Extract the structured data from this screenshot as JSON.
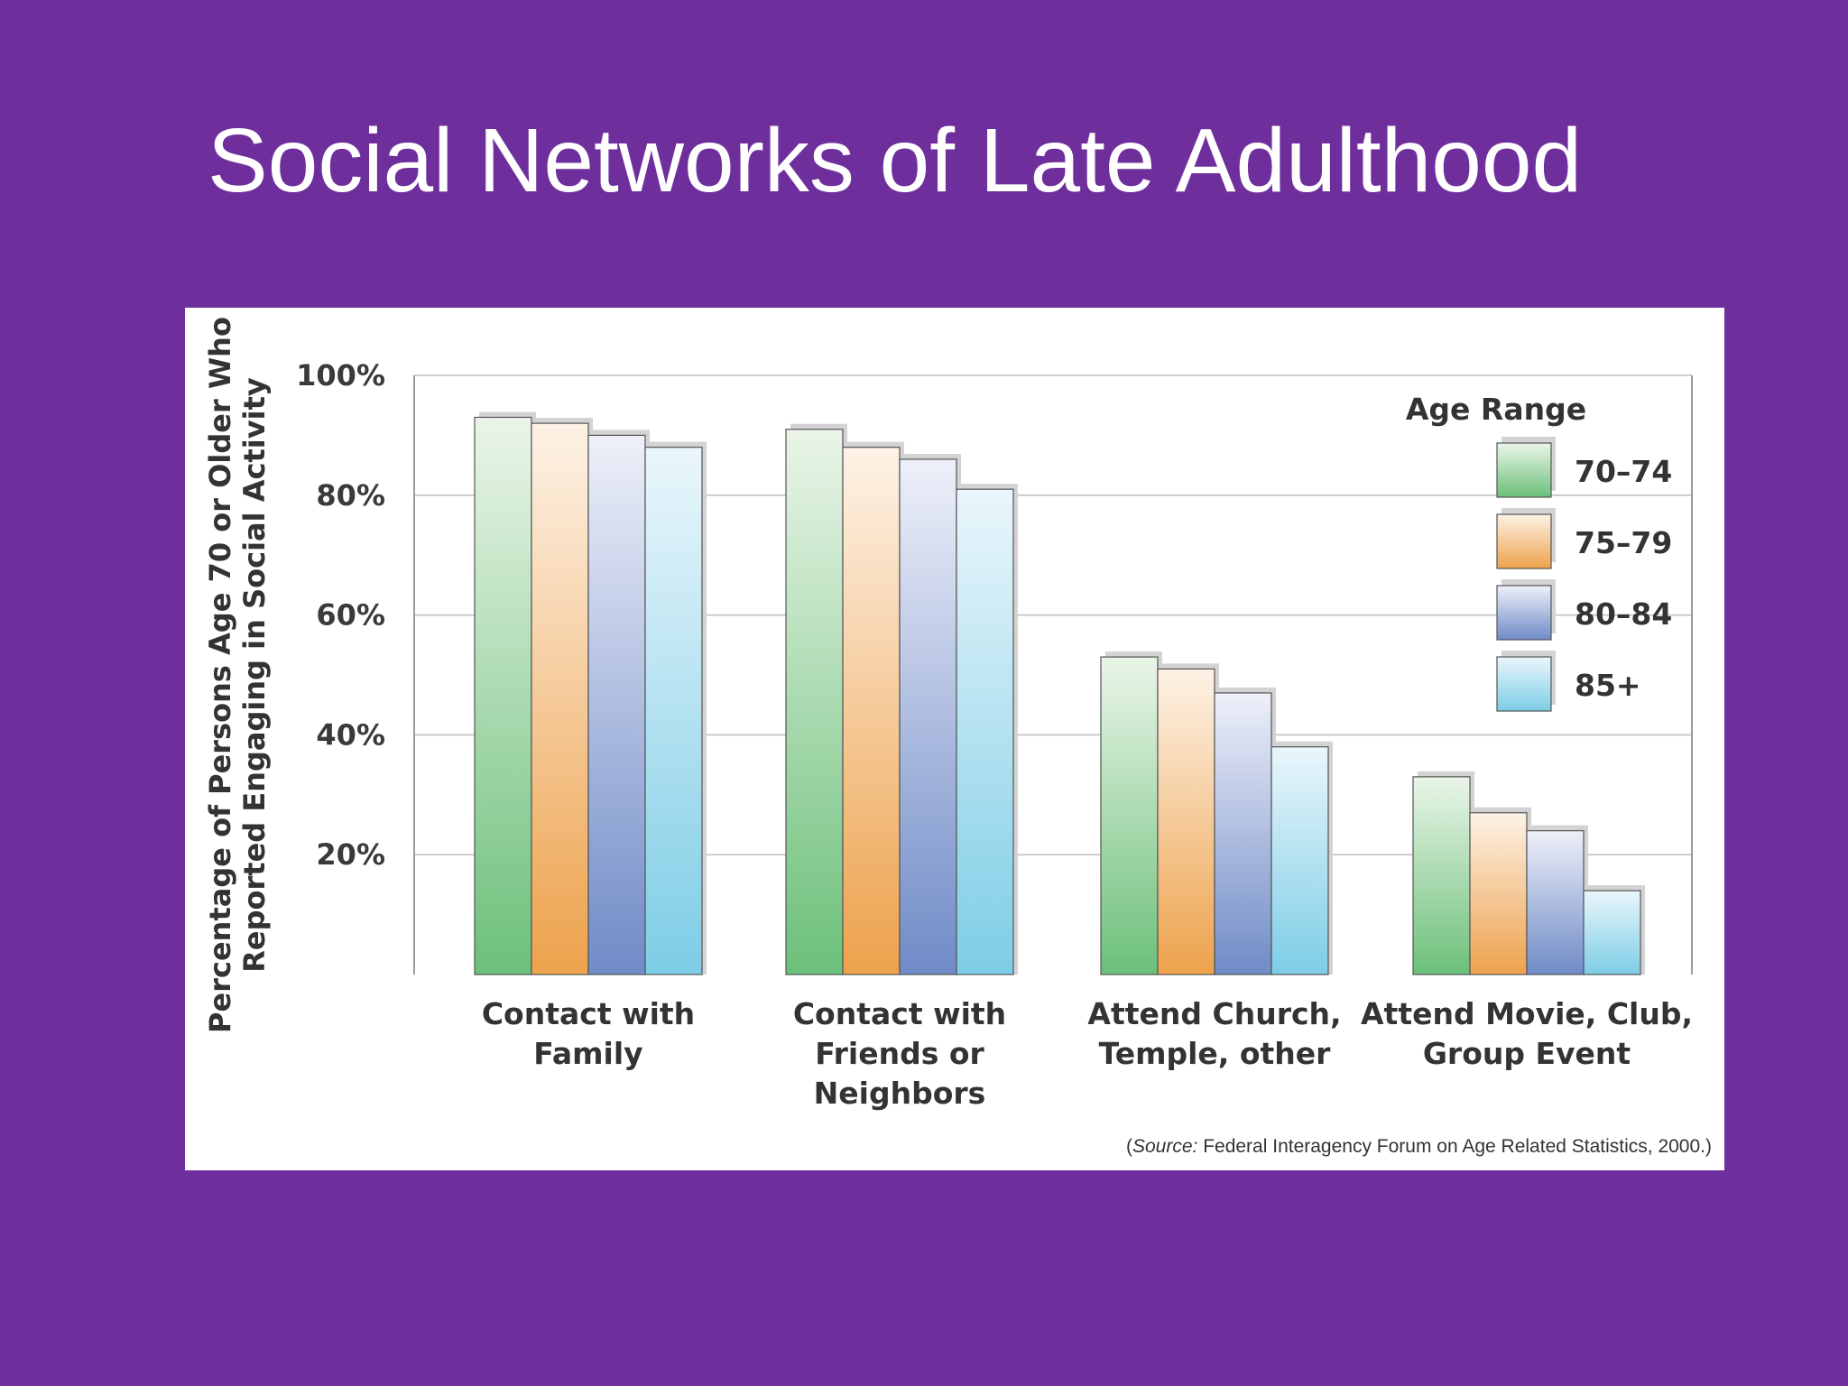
{
  "slide": {
    "title": "Social Networks of Late Adulthood",
    "background": "#6e2f9c"
  },
  "source": {
    "prefix": "(",
    "label": "Source:",
    "text": " Federal Interagency Forum on Age Related Statistics, 2000.)"
  },
  "chart_data": {
    "type": "bar",
    "title": "",
    "ylabel_lines": [
      "Percentage of Persons Age 70 or Older Who",
      "Reported Engaging in Social Activity"
    ],
    "xlabel": "",
    "ylim": [
      0,
      100
    ],
    "yticks": [
      20,
      40,
      60,
      80,
      100
    ],
    "ytick_labels": [
      "20%",
      "40%",
      "60%",
      "80%",
      "100%"
    ],
    "grid": true,
    "legend": {
      "title": "Age Range",
      "position": "top-right"
    },
    "categories": [
      [
        "Contact with",
        "Family"
      ],
      [
        "Contact with",
        "Friends or",
        "Neighbors"
      ],
      [
        "Attend Church,",
        "Temple, other"
      ],
      [
        "Attend Movie, Club,",
        "Group Event"
      ]
    ],
    "series": [
      {
        "name": "70–74",
        "color_top": "#eaf5e8",
        "color_bottom": "#6cc07a",
        "values": [
          93,
          91,
          53,
          33
        ]
      },
      {
        "name": "75–79",
        "color_top": "#fdf2e6",
        "color_bottom": "#eda24c",
        "values": [
          92,
          88,
          51,
          27
        ]
      },
      {
        "name": "80–84",
        "color_top": "#eef0f9",
        "color_bottom": "#6f8bc7",
        "values": [
          90,
          86,
          47,
          24
        ]
      },
      {
        "name": "85+",
        "color_top": "#eaf6fb",
        "color_bottom": "#7dcde6",
        "values": [
          88,
          81,
          38,
          14
        ]
      }
    ]
  }
}
